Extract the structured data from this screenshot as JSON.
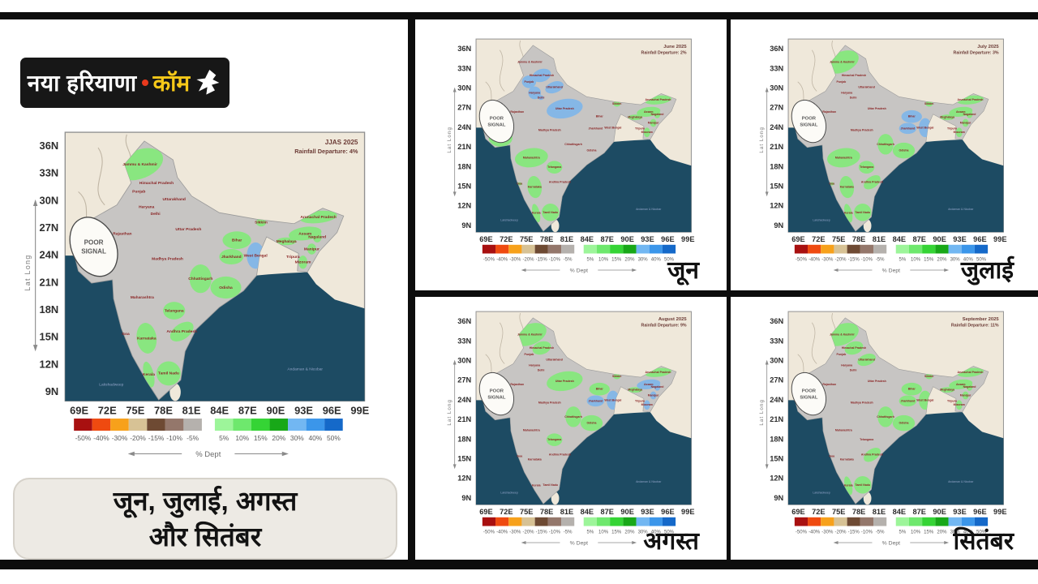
{
  "brand": {
    "name_white": "नया हरियाणा",
    "name_accent": "कॉम"
  },
  "caption": {
    "line1": "जून, जुलाई, अगस्त",
    "line2": "और सितंबर"
  },
  "poor_signal": "POOR SIGNAL",
  "axis": {
    "label": "Lat Long",
    "lat_ticks": [
      "36N",
      "33N",
      "30N",
      "27N",
      "24N",
      "21N",
      "18N",
      "15N",
      "12N",
      "9N"
    ],
    "lon_ticks": [
      "69E",
      "72E",
      "75E",
      "78E",
      "81E",
      "84E",
      "87E",
      "90E",
      "93E",
      "96E",
      "99E"
    ]
  },
  "legend": {
    "caption": "% Dept",
    "negative": [
      {
        "label": "-50%",
        "color": "#a81010"
      },
      {
        "label": "-40%",
        "color": "#ef4a10"
      },
      {
        "label": "-30%",
        "color": "#f7a11b"
      },
      {
        "label": "-20%",
        "color": "#d7c295"
      },
      {
        "label": "-15%",
        "color": "#6e4a33"
      },
      {
        "label": "-10%",
        "color": "#94776b"
      },
      {
        "label": "-5%",
        "color": "#b5b1ad"
      }
    ],
    "positive": [
      {
        "label": "5%",
        "color": "#9df59a"
      },
      {
        "label": "10%",
        "color": "#6ee86d"
      },
      {
        "label": "15%",
        "color": "#35d435"
      },
      {
        "label": "20%",
        "color": "#18a818"
      },
      {
        "label": "30%",
        "color": "#72b7f2"
      },
      {
        "label": "40%",
        "color": "#3b96ea"
      },
      {
        "label": "50%",
        "color": "#1569c9"
      }
    ]
  },
  "colors": {
    "ocean": "#1d4b63",
    "land": "#efe8da",
    "state_default": "#c7c5c3",
    "green": "#89e680",
    "blue": "#85b7e6",
    "state_label": "#8a2424"
  },
  "ocean_labels": [
    "Lakshadweep",
    "Andaman & Nicobar"
  ],
  "state_names": {
    "jammu_kashmir": "Jammu & Kashmir",
    "himachal": "Himachal Pradesh",
    "punjab": "Punjab",
    "haryana": "Haryana",
    "delhi": "Delhi",
    "uttarakhand": "Uttarakhand",
    "rajasthan": "Rajasthan",
    "uttar_pradesh": "Uttar Pradesh",
    "bihar": "Bihar",
    "sikkim": "Sikkim",
    "west_bengal": "West Bengal",
    "jharkhand": "Jharkhand",
    "odisha": "Odisha",
    "chhattisgarh": "Chhattisgarh",
    "madhya_pradesh": "Madhya Pradesh",
    "gujarat": "Gujarat",
    "maharashtra": "Maharashtra",
    "telangana": "Telangana",
    "andhra_pradesh": "Andhra Pradesh",
    "karnataka": "Karnataka",
    "goa": "Goa",
    "kerala": "Kerala",
    "tamil_nadu": "Tamil Nadu",
    "assam": "Assam",
    "meghalaya": "Meghalaya",
    "arunachal": "Arunachal Pradesh",
    "nagaland": "Nagaland",
    "manipur": "Manipur",
    "mizoram": "Mizoram",
    "tripura": "Tripura"
  },
  "maps": {
    "main": {
      "title": "JJAS 2025",
      "subtitle": "Rainfall Departure: 4%",
      "regions": {
        "jammu_kashmir": "green",
        "sikkim": "green",
        "arunachal": "green",
        "assam": "green",
        "meghalaya": "green",
        "nagaland": "green",
        "manipur": "green",
        "tripura": "green",
        "mizoram": "green",
        "bihar": "green",
        "jharkhand": "green",
        "west_bengal": "blue",
        "chhattisgarh": "green",
        "odisha": "green",
        "telangana": "green",
        "andhra_pradesh": "green",
        "karnataka": "green",
        "tamil_nadu": "green",
        "kerala": "green"
      }
    },
    "june": {
      "title": "June 2025",
      "subtitle": "Rainfall Departure: 2%",
      "label": "जून",
      "regions": {
        "himachal": "blue",
        "punjab": "blue",
        "haryana": "blue",
        "delhi": "blue",
        "uttarakhand": "blue",
        "uttar_pradesh": "blue",
        "gujarat": "green",
        "goa": "green",
        "maharashtra": "green",
        "telangana": "green",
        "karnataka": "green",
        "kerala": "green",
        "tamil_nadu": "green",
        "sikkim": "green",
        "arunachal": "green",
        "assam": "green",
        "meghalaya": "green",
        "nagaland": "green",
        "manipur": "green",
        "mizoram": "green"
      }
    },
    "july": {
      "title": "July 2025",
      "subtitle": "Rainfall Departure: 3%",
      "label": "जुलाई",
      "regions": {
        "jammu_kashmir": "green",
        "maharashtra": "green",
        "goa": "green",
        "telangana": "green",
        "karnataka": "green",
        "kerala": "green",
        "tamil_nadu": "green",
        "andhra_pradesh": "green",
        "chhattisgarh": "green",
        "odisha": "green",
        "bihar": "blue",
        "jharkhand": "blue",
        "west_bengal": "blue",
        "sikkim": "green",
        "arunachal": "green",
        "assam": "green",
        "meghalaya": "green",
        "nagaland": "green",
        "manipur": "green",
        "mizoram": "green",
        "tripura": "green"
      }
    },
    "august": {
      "title": "August 2025",
      "subtitle": "Rainfall Departure: 9%",
      "label": "अगस्त",
      "regions": {
        "jammu_kashmir": "green",
        "himachal": "green",
        "uttar_pradesh": "green",
        "bihar": "green",
        "sikkim": "green",
        "arunachal": "green",
        "meghalaya": "green",
        "chhattisgarh": "green",
        "odisha": "green",
        "telangana": "green",
        "jharkhand": "blue",
        "west_bengal": "blue",
        "assam": "blue",
        "nagaland": "blue",
        "manipur": "blue",
        "mizoram": "blue"
      }
    },
    "september": {
      "title": "September 2025",
      "subtitle": "Rainfall Departure: 11%",
      "label": "सितंबर",
      "regions": {
        "jammu_kashmir": "green",
        "himachal": "green",
        "uttarakhand": "green",
        "bihar": "green",
        "jharkhand": "green",
        "west_bengal": "green",
        "chhattisgarh": "green",
        "odisha": "green",
        "sikkim": "green",
        "arunachal": "green",
        "assam": "green",
        "meghalaya": "green",
        "nagaland": "green",
        "manipur": "green",
        "mizoram": "green",
        "tripura": "green",
        "andhra_pradesh": "green",
        "tamil_nadu": "green",
        "kerala": "green"
      }
    }
  }
}
